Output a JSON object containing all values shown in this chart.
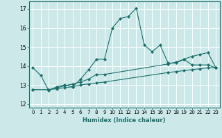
{
  "xlabel": "Humidex (Indice chaleur)",
  "xlim": [
    -0.5,
    23.5
  ],
  "ylim": [
    11.8,
    17.4
  ],
  "yticks": [
    12,
    13,
    14,
    15,
    16,
    17
  ],
  "xticks": [
    0,
    1,
    2,
    3,
    4,
    5,
    6,
    7,
    8,
    9,
    10,
    11,
    12,
    13,
    14,
    15,
    16,
    17,
    18,
    19,
    20,
    21,
    22,
    23
  ],
  "bg_color": "#cce8e8",
  "grid_color": "#ffffff",
  "line_color": "#1a6e6a",
  "line1_x": [
    0,
    1,
    2,
    3,
    4,
    5,
    6,
    7,
    8,
    9,
    10,
    11,
    12,
    13,
    14,
    15,
    16,
    17,
    18,
    19,
    20,
    21,
    22,
    23
  ],
  "line1_y": [
    13.9,
    13.5,
    12.7,
    12.9,
    13.0,
    12.9,
    13.3,
    13.8,
    14.35,
    14.35,
    16.0,
    16.5,
    16.6,
    17.05,
    15.1,
    14.75,
    15.1,
    14.15,
    14.15,
    14.35,
    14.05,
    14.05,
    14.05,
    13.9
  ],
  "line2_x": [
    0,
    2,
    3,
    4,
    5,
    6,
    7,
    8,
    9,
    17,
    18,
    19,
    20,
    21,
    22,
    23
  ],
  "line2_y": [
    12.75,
    12.75,
    12.85,
    12.95,
    13.05,
    13.15,
    13.3,
    13.55,
    13.55,
    14.1,
    14.2,
    14.35,
    14.5,
    14.6,
    14.7,
    13.9
  ],
  "line3_x": [
    0,
    2,
    3,
    4,
    5,
    6,
    7,
    8,
    9,
    17,
    18,
    19,
    20,
    21,
    22,
    23
  ],
  "line3_y": [
    12.75,
    12.75,
    12.8,
    12.85,
    12.9,
    13.0,
    13.05,
    13.1,
    13.15,
    13.65,
    13.7,
    13.75,
    13.8,
    13.85,
    13.9,
    13.9
  ]
}
